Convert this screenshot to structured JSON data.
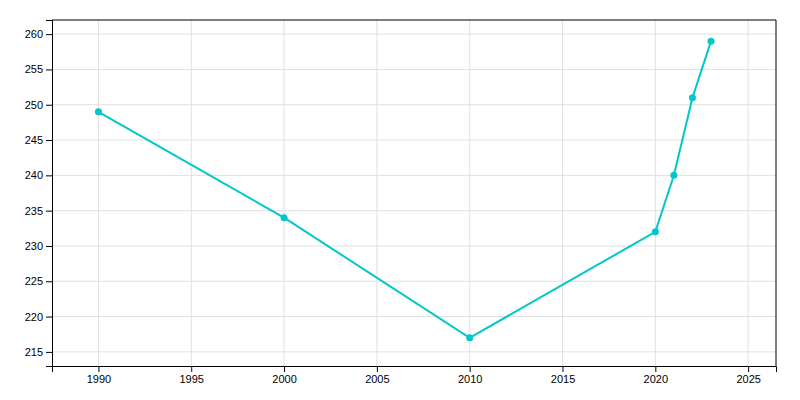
{
  "chart_data": {
    "type": "line",
    "x": [
      1990,
      2000,
      2010,
      2020,
      2021,
      2022,
      2023
    ],
    "values": [
      249,
      234,
      217,
      232,
      240,
      251,
      259
    ],
    "color": "#00C8C8",
    "marker": "circle",
    "xlim": [
      1987.5,
      2026.5
    ],
    "ylim": [
      213,
      262
    ],
    "xticks": [
      1990,
      1995,
      2000,
      2005,
      2010,
      2015,
      2020,
      2025
    ],
    "yticks": [
      215,
      220,
      225,
      230,
      235,
      240,
      245,
      250,
      255,
      260
    ],
    "grid": true
  }
}
